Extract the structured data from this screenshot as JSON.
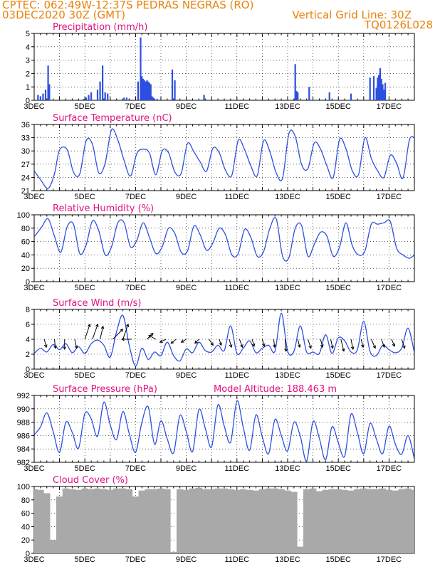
{
  "header": {
    "left_line1": "CPTEC:   062:49W-12:37S   PEDRAS NEGRAS (RO)",
    "left_line2": "03DEC2020 30Z (GMT)",
    "right_line1": "Vertical Grid Line: 30Z",
    "right_line2": "TQ0126L028"
  },
  "colors": {
    "header": "#e8820c",
    "title": "#e0117f",
    "line": "#2d4fe0",
    "bar": "#2d4fe0",
    "cloud": "#a9a9a9"
  },
  "x_axis": {
    "start_day": 3,
    "end_day": 18,
    "labels": [
      {
        "day": 3,
        "label": "3DEC"
      },
      {
        "day": 5,
        "label": "5DEC"
      },
      {
        "day": 7,
        "label": "7DEC"
      },
      {
        "day": 9,
        "label": "9DEC"
      },
      {
        "day": 11,
        "label": "11DEC"
      },
      {
        "day": 13,
        "label": "13DEC"
      },
      {
        "day": 15,
        "label": "15DEC"
      },
      {
        "day": 17,
        "label": "17DEC"
      }
    ]
  },
  "chart_data": [
    {
      "type": "bar",
      "title": "Precipitation  (mm/h)",
      "ylim": [
        0,
        5
      ],
      "yticks": [
        0,
        1,
        2,
        3,
        4,
        5
      ],
      "x": [
        3.15,
        3.25,
        3.35,
        3.45,
        3.55,
        3.6,
        4.95,
        5.05,
        5.15,
        5.25,
        5.5,
        5.6,
        5.7,
        5.8,
        5.9,
        6.55,
        6.65,
        6.75,
        7.1,
        7.2,
        7.25,
        7.3,
        7.35,
        7.4,
        7.45,
        7.5,
        7.55,
        7.6,
        7.65,
        7.7,
        7.85,
        8.45,
        8.55,
        9.7,
        13.3,
        13.35,
        13.4,
        13.85,
        14.65,
        15.5,
        16.25,
        16.4,
        16.5,
        16.55,
        16.6,
        16.65,
        16.7,
        16.75,
        16.8,
        16.85
      ],
      "values": [
        0.4,
        0.3,
        0.5,
        0.8,
        2.6,
        1.2,
        0.1,
        0.2,
        0.4,
        0.6,
        0.8,
        1.4,
        2.6,
        0.6,
        0.5,
        0.2,
        0.2,
        0.1,
        1.4,
        4.7,
        1.8,
        1.6,
        1.5,
        1.4,
        1.5,
        1.4,
        1.3,
        1.2,
        0.3,
        0.2,
        0.1,
        2.3,
        1.5,
        0.4,
        2.7,
        0.7,
        0.6,
        1.0,
        0.6,
        0.5,
        1.7,
        1.8,
        0.9,
        1.7,
        1.9,
        2.4,
        1.6,
        1.2,
        0.8,
        1.3
      ]
    },
    {
      "type": "line",
      "title": "Surface Temperature  (nC)",
      "ylim": [
        21,
        36
      ],
      "yticks": [
        21,
        24,
        27,
        30,
        33,
        36
      ],
      "x": [
        3.0,
        3.25,
        3.55,
        3.8,
        4.0,
        4.3,
        4.55,
        4.8,
        5.05,
        5.3,
        5.55,
        5.8,
        6.05,
        6.3,
        6.55,
        6.8,
        7.05,
        7.3,
        7.55,
        7.8,
        8.05,
        8.3,
        8.55,
        8.8,
        9.05,
        9.3,
        9.55,
        9.8,
        10.05,
        10.3,
        10.55,
        10.8,
        11.05,
        11.3,
        11.55,
        11.8,
        12.05,
        12.3,
        12.55,
        12.8,
        13.05,
        13.3,
        13.55,
        13.8,
        14.05,
        14.3,
        14.55,
        14.8,
        15.05,
        15.3,
        15.55,
        15.8,
        16.05,
        16.3,
        16.55,
        16.8,
        17.05,
        17.3,
        17.55,
        17.8,
        18.0
      ],
      "values": [
        25.5,
        23.5,
        21.5,
        24.8,
        30.2,
        30.3,
        25.2,
        24.8,
        32.3,
        31.5,
        25.0,
        27.2,
        34.8,
        32.5,
        27.8,
        24.3,
        29.4,
        30.4,
        29.5,
        24.6,
        30.0,
        29.6,
        25.2,
        24.9,
        31.7,
        29.8,
        27.5,
        25.4,
        30.6,
        29.6,
        25.6,
        24.5,
        32.4,
        30.3,
        26.6,
        24.4,
        32.3,
        29.8,
        25.0,
        23.8,
        33.9,
        33.3,
        26.9,
        26.0,
        31.8,
        30.4,
        26.6,
        24.0,
        32.6,
        30.5,
        25.5,
        24.7,
        33.0,
        28.3,
        25.5,
        24.0,
        29.0,
        27.2,
        23.8,
        32.4,
        33.0
      ]
    },
    {
      "type": "line",
      "title": "Relative Humidity  (%)",
      "ylim": [
        0,
        100
      ],
      "yticks": [
        0,
        20,
        40,
        60,
        80,
        100
      ],
      "x": [
        3.0,
        3.3,
        3.55,
        3.8,
        4.05,
        4.3,
        4.55,
        4.8,
        5.05,
        5.3,
        5.55,
        5.8,
        6.05,
        6.3,
        6.55,
        6.8,
        7.05,
        7.3,
        7.55,
        7.8,
        8.05,
        8.3,
        8.55,
        8.8,
        9.05,
        9.3,
        9.55,
        9.8,
        10.05,
        10.3,
        10.55,
        10.8,
        11.05,
        11.3,
        11.55,
        11.8,
        12.05,
        12.3,
        12.55,
        12.8,
        13.05,
        13.3,
        13.55,
        13.8,
        14.05,
        14.3,
        14.55,
        14.8,
        15.05,
        15.3,
        15.55,
        15.8,
        16.05,
        16.3,
        16.55,
        16.8,
        17.05,
        17.3,
        17.55,
        17.8,
        18.0
      ],
      "values": [
        67.0,
        82.0,
        94.0,
        68.0,
        44.0,
        82.0,
        86.0,
        42.0,
        55.0,
        91.0,
        76.0,
        40.0,
        52.0,
        88.0,
        88.0,
        52.0,
        62.0,
        88.0,
        66.0,
        42.0,
        52.0,
        80.0,
        72.0,
        44.0,
        46.0,
        83.0,
        70.0,
        47.0,
        58.0,
        80.0,
        70.0,
        40.0,
        42.0,
        78.0,
        66.0,
        38.0,
        45.0,
        80.0,
        94.0,
        38.0,
        36.0,
        80.0,
        84.0,
        38.0,
        56.0,
        74.0,
        68.0,
        38.0,
        52.0,
        88.0,
        54.0,
        40.0,
        46.0,
        86.0,
        86.0,
        88.0,
        90.0,
        50.0,
        40.0,
        35.0,
        40.0
      ]
    },
    {
      "type": "line",
      "title": "Surface Wind  (m/s)",
      "ylim": [
        0,
        8
      ],
      "yticks": [
        0,
        2,
        4,
        6,
        8
      ],
      "x": [
        3.0,
        3.25,
        3.5,
        3.75,
        4.0,
        4.25,
        4.5,
        4.75,
        5.0,
        5.25,
        5.5,
        5.75,
        6.0,
        6.25,
        6.5,
        6.75,
        7.0,
        7.25,
        7.5,
        7.75,
        8.0,
        8.25,
        8.5,
        8.75,
        9.0,
        9.25,
        9.5,
        9.75,
        10.0,
        10.25,
        10.5,
        10.75,
        11.0,
        11.25,
        11.5,
        11.75,
        12.0,
        12.25,
        12.5,
        12.75,
        13.0,
        13.25,
        13.5,
        13.75,
        14.0,
        14.25,
        14.5,
        14.75,
        15.0,
        15.25,
        15.5,
        15.75,
        16.0,
        16.25,
        16.5,
        16.75,
        17.0,
        17.25,
        17.5,
        17.75,
        18.0
      ],
      "values": [
        2.1,
        2.8,
        2.3,
        3.3,
        2.6,
        3.4,
        2.2,
        3.0,
        2.1,
        3.4,
        3.9,
        3.2,
        1.6,
        5.0,
        7.2,
        3.2,
        0.4,
        2.8,
        1.3,
        2.3,
        1.8,
        3.6,
        1.8,
        1.1,
        2.7,
        2.2,
        3.6,
        2.5,
        2.3,
        3.2,
        2.5,
        5.8,
        2.1,
        2.8,
        3.8,
        2.2,
        2.8,
        3.2,
        2.4,
        7.5,
        2.4,
        2.4,
        5.8,
        2.3,
        2.3,
        2.1,
        4.6,
        2.1,
        4.2,
        3.8,
        2.3,
        2.6,
        6.4,
        2.4,
        1.8,
        3.2,
        2.6,
        2.2,
        2.8,
        5.5,
        2.2
      ],
      "wind_arrows": [
        {
          "x": 3.4,
          "u": 0.2,
          "v": -0.8
        },
        {
          "x": 3.8,
          "u": 0.1,
          "v": -0.9
        },
        {
          "x": 4.2,
          "u": 0.0,
          "v": -1.0
        },
        {
          "x": 4.6,
          "u": 0.2,
          "v": -0.9
        },
        {
          "x": 5.0,
          "u": 0.5,
          "v": 1.5
        },
        {
          "x": 5.3,
          "u": 0.6,
          "v": 1.7
        },
        {
          "x": 5.6,
          "u": 0.3,
          "v": 1.3
        },
        {
          "x": 6.1,
          "u": 1.0,
          "v": 1.0
        },
        {
          "x": 6.5,
          "u": 0.7,
          "v": 2.0
        },
        {
          "x": 6.85,
          "u": -1.0,
          "v": 0.0
        },
        {
          "x": 7.45,
          "u": 0.6,
          "v": 0.6
        },
        {
          "x": 7.8,
          "u": -0.7,
          "v": 0.4
        },
        {
          "x": 8.2,
          "u": -0.6,
          "v": -0.3
        },
        {
          "x": 8.6,
          "u": -0.5,
          "v": -0.4
        },
        {
          "x": 9.0,
          "u": -0.5,
          "v": -0.3
        },
        {
          "x": 9.5,
          "u": -0.4,
          "v": -0.4
        },
        {
          "x": 9.9,
          "u": 0.4,
          "v": -0.6
        },
        {
          "x": 10.3,
          "u": 0.2,
          "v": -0.6
        },
        {
          "x": 10.7,
          "u": 0.2,
          "v": -0.8
        },
        {
          "x": 11.1,
          "u": 0.3,
          "v": -0.8
        },
        {
          "x": 11.6,
          "u": 0.2,
          "v": -0.7
        },
        {
          "x": 12.0,
          "u": 0.2,
          "v": -0.7
        },
        {
          "x": 12.45,
          "u": 0.1,
          "v": -0.8
        },
        {
          "x": 12.9,
          "u": 0.1,
          "v": -1.2
        },
        {
          "x": 13.4,
          "u": 0.2,
          "v": -0.8
        },
        {
          "x": 13.8,
          "u": 0.3,
          "v": -0.9
        },
        {
          "x": 14.3,
          "u": 0.2,
          "v": -0.8
        },
        {
          "x": 14.7,
          "u": 0.2,
          "v": -0.9
        },
        {
          "x": 15.1,
          "u": 0.3,
          "v": -1.2
        },
        {
          "x": 15.5,
          "u": 0.2,
          "v": -1.0
        },
        {
          "x": 15.9,
          "u": 0.2,
          "v": -0.8
        },
        {
          "x": 16.3,
          "u": 0.4,
          "v": -0.9
        },
        {
          "x": 16.7,
          "u": 0.3,
          "v": -0.8
        },
        {
          "x": 17.1,
          "u": 0.3,
          "v": -0.7
        },
        {
          "x": 17.5,
          "u": 0.3,
          "v": -0.9
        }
      ]
    },
    {
      "type": "line",
      "title": "Surface Pressure  (hPa)",
      "annotation": "Model Altitude: 188.463  m",
      "ylim": [
        982,
        992
      ],
      "yticks": [
        982,
        984,
        986,
        988,
        990,
        992
      ],
      "x": [
        3.0,
        3.25,
        3.5,
        3.75,
        4.0,
        4.25,
        4.5,
        4.75,
        5.0,
        5.25,
        5.5,
        5.75,
        6.0,
        6.25,
        6.5,
        6.75,
        7.0,
        7.25,
        7.5,
        7.75,
        8.0,
        8.25,
        8.5,
        8.75,
        9.0,
        9.25,
        9.5,
        9.75,
        10.0,
        10.25,
        10.5,
        10.75,
        11.0,
        11.25,
        11.5,
        11.75,
        12.0,
        12.25,
        12.5,
        12.75,
        13.0,
        13.25,
        13.5,
        13.75,
        14.0,
        14.25,
        14.5,
        14.75,
        15.0,
        15.25,
        15.5,
        15.75,
        16.0,
        16.25,
        16.5,
        16.75,
        17.0,
        17.25,
        17.5,
        17.75,
        18.0
      ],
      "values": [
        986.1,
        987.3,
        989.4,
        986.6,
        983.5,
        988.0,
        986.5,
        984.1,
        989.3,
        988.5,
        985.9,
        991.0,
        987.6,
        985.4,
        989.6,
        986.3,
        983.5,
        988.0,
        990.3,
        984.7,
        988.2,
        985.5,
        983.4,
        989.0,
        986.6,
        983.6,
        989.9,
        987.1,
        984.3,
        990.6,
        987.4,
        985.0,
        991.2,
        987.2,
        983.8,
        989.1,
        985.8,
        983.3,
        988.4,
        986.0,
        983.7,
        988.0,
        985.9,
        982.2,
        988.1,
        985.6,
        982.4,
        987.3,
        984.9,
        982.9,
        989.2,
        986.5,
        983.3,
        987.8,
        985.5,
        983.3,
        987.4,
        984.7,
        983.2,
        986.0,
        982.5
      ]
    },
    {
      "type": "bar",
      "title": "Cloud Cover  (%)",
      "ylim": [
        0,
        100
      ],
      "yticks": [
        0,
        20,
        40,
        60,
        80,
        100
      ],
      "x": [
        3.0,
        3.25,
        3.5,
        3.75,
        4.0,
        4.25,
        4.5,
        4.75,
        5.0,
        5.25,
        5.5,
        5.75,
        6.0,
        6.25,
        6.5,
        6.75,
        7.0,
        7.25,
        7.5,
        7.75,
        8.0,
        8.25,
        8.5,
        8.75,
        9.0,
        9.25,
        9.5,
        9.75,
        10.0,
        10.25,
        10.5,
        10.75,
        11.0,
        11.25,
        11.5,
        11.75,
        12.0,
        12.25,
        12.5,
        12.75,
        13.0,
        13.25,
        13.5,
        13.75,
        14.0,
        14.25,
        14.5,
        14.75,
        15.0,
        15.25,
        15.5,
        15.75,
        16.0,
        16.25,
        16.5,
        16.75,
        17.0,
        17.25,
        17.5,
        17.75,
        18.0
      ],
      "values": [
        96,
        95,
        90,
        20,
        85,
        97,
        96,
        95,
        97,
        96,
        97,
        96,
        95,
        97,
        97,
        96,
        85,
        94,
        96,
        96,
        97,
        96,
        2,
        96,
        95,
        97,
        98,
        96,
        96,
        97,
        97,
        96,
        95,
        96,
        95,
        94,
        96,
        97,
        97,
        96,
        94,
        92,
        10,
        96,
        97,
        93,
        95,
        96,
        96,
        95,
        94,
        96,
        97,
        96,
        96,
        97,
        95,
        94,
        96,
        97,
        95
      ]
    }
  ]
}
